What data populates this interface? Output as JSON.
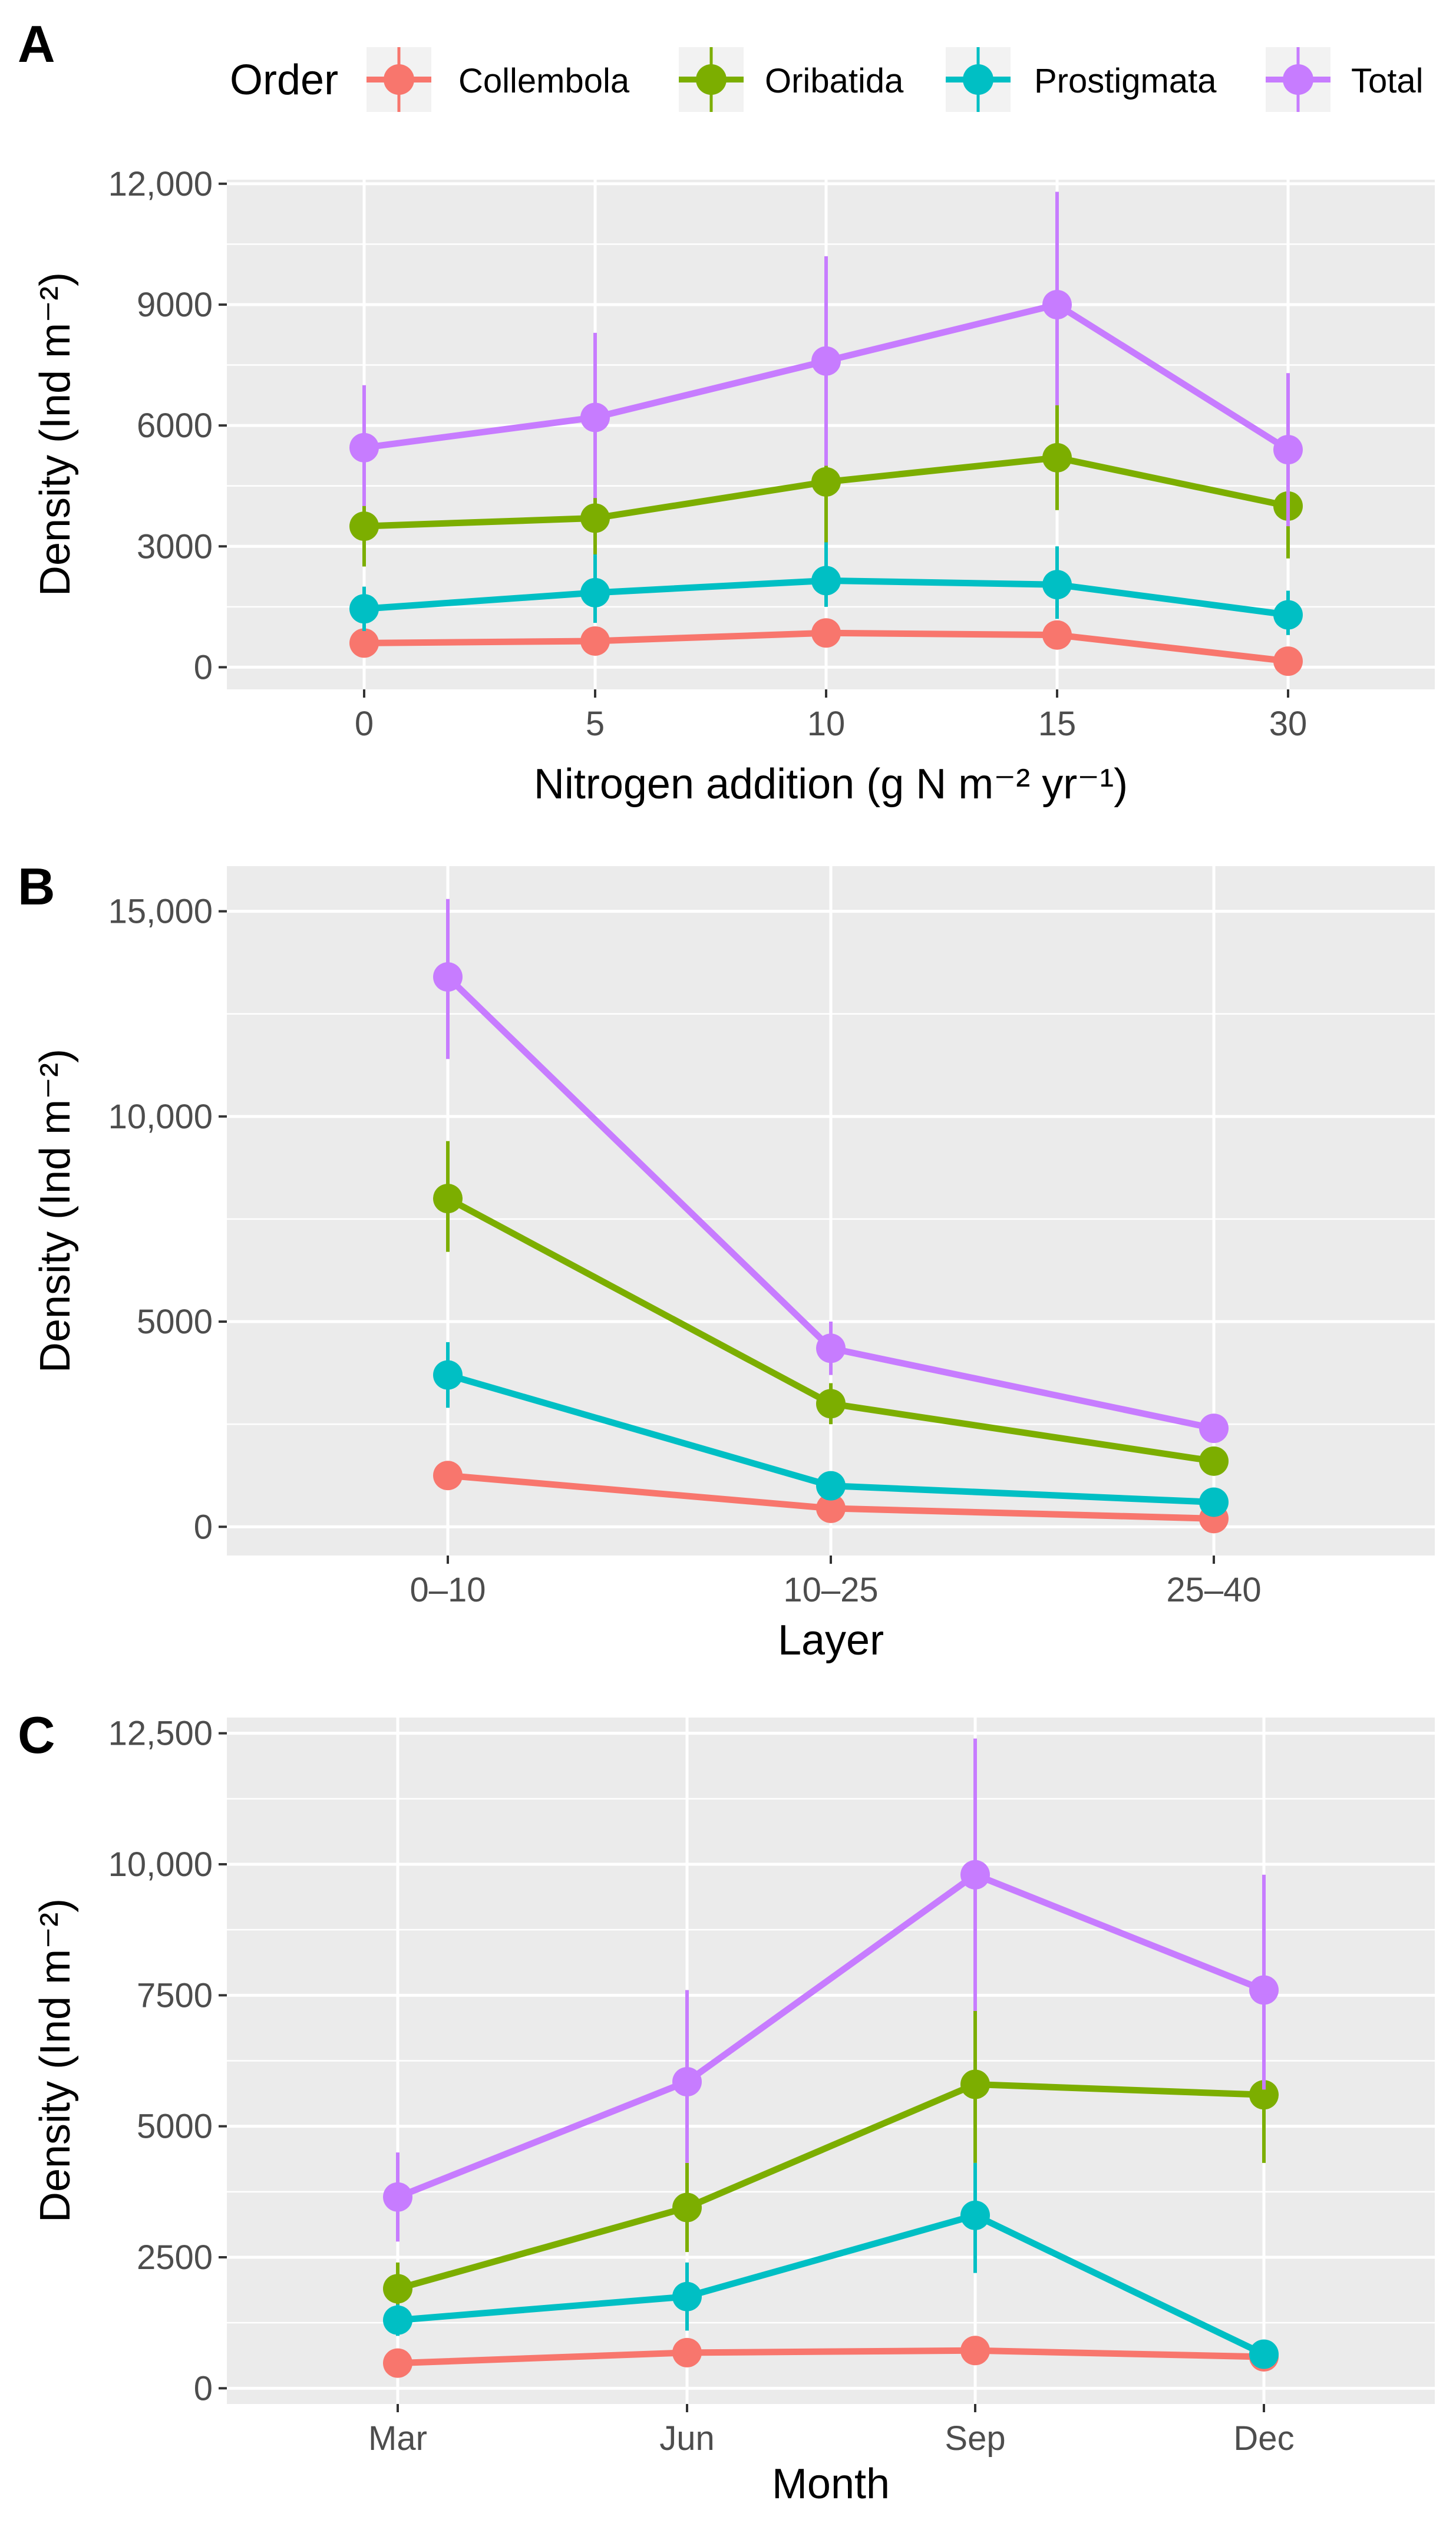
{
  "legend": {
    "title": "Order",
    "entries": [
      {
        "name": "Collembola",
        "color": "#F8766D"
      },
      {
        "name": "Oribatida",
        "color": "#7CAE00"
      },
      {
        "name": "Prostigmata",
        "color": "#00BFC4"
      },
      {
        "name": "Total",
        "color": "#C77CFF"
      }
    ]
  },
  "chart_data": [
    {
      "panel": "A",
      "type": "line",
      "xlabel": "Nitrogen addition (g N  m⁻² yr⁻¹)",
      "ylabel": "Density (Ind  m⁻²)",
      "categories": [
        "0",
        "5",
        "10",
        "15",
        "30"
      ],
      "ylim": [
        -550,
        12100
      ],
      "yticks": [
        0,
        3000,
        6000,
        9000,
        12000
      ],
      "ytick_labels": [
        "0",
        "3000",
        "6000",
        "9000",
        "12,000"
      ],
      "series": [
        {
          "name": "Collembola",
          "values": [
            600,
            650,
            850,
            800,
            150
          ],
          "lower": [
            400,
            450,
            650,
            600,
            0
          ],
          "upper": [
            800,
            850,
            1050,
            1000,
            300
          ]
        },
        {
          "name": "Oribatida",
          "values": [
            3500,
            3700,
            4600,
            5200,
            4000
          ],
          "lower": [
            2500,
            2700,
            3000,
            3900,
            2700
          ],
          "upper": [
            4700,
            5000,
            6200,
            6600,
            5000
          ]
        },
        {
          "name": "Prostigmata",
          "values": [
            1450,
            1850,
            2150,
            2050,
            1300
          ],
          "lower": [
            900,
            1100,
            1500,
            1200,
            800
          ],
          "upper": [
            2000,
            2800,
            3100,
            3000,
            1900
          ]
        },
        {
          "name": "Total",
          "values": [
            5450,
            6200,
            7600,
            9000,
            5400
          ],
          "lower": [
            4000,
            4200,
            5000,
            6500,
            3500
          ],
          "upper": [
            7000,
            8300,
            10200,
            11800,
            7300
          ]
        }
      ]
    },
    {
      "panel": "B",
      "type": "line",
      "xlabel": "Layer",
      "ylabel": "Density (Ind  m⁻²)",
      "categories": [
        "0–10",
        "10–25",
        "25–40"
      ],
      "ylim": [
        -700,
        16100
      ],
      "yticks": [
        0,
        5000,
        10000,
        15000
      ],
      "ytick_labels": [
        "0",
        "5000",
        "10,000",
        "15,000"
      ],
      "series": [
        {
          "name": "Collembola",
          "values": [
            1250,
            450,
            200
          ],
          "lower": [
            1000,
            300,
            100
          ],
          "upper": [
            1500,
            600,
            300
          ]
        },
        {
          "name": "Oribatida",
          "values": [
            8000,
            3000,
            1600
          ],
          "lower": [
            6700,
            2500,
            1300
          ],
          "upper": [
            9400,
            3500,
            1900
          ]
        },
        {
          "name": "Prostigmata",
          "values": [
            3700,
            1000,
            600
          ],
          "lower": [
            2900,
            800,
            400
          ],
          "upper": [
            4500,
            1200,
            800
          ]
        },
        {
          "name": "Total",
          "values": [
            13400,
            4350,
            2400
          ],
          "lower": [
            11400,
            3700,
            2100
          ],
          "upper": [
            15300,
            5000,
            2700
          ]
        }
      ]
    },
    {
      "panel": "C",
      "type": "line",
      "xlabel": "Month",
      "ylabel": "Density (Ind  m⁻²)",
      "categories": [
        "Mar",
        "Jun",
        "Sep",
        "Dec"
      ],
      "ylim": [
        -300,
        12800
      ],
      "yticks": [
        0,
        2500,
        5000,
        7500,
        10000,
        12500
      ],
      "ytick_labels": [
        "0",
        "2500",
        "5000",
        "7500",
        "10,000",
        "12,500"
      ],
      "series": [
        {
          "name": "Collembola",
          "values": [
            480,
            680,
            720,
            600
          ],
          "lower": [
            300,
            450,
            500,
            450
          ],
          "upper": [
            650,
            900,
            950,
            750
          ]
        },
        {
          "name": "Oribatida",
          "values": [
            1900,
            3450,
            5800,
            5600
          ],
          "lower": [
            1500,
            2600,
            4300,
            4300
          ],
          "upper": [
            2400,
            4300,
            7300,
            6900
          ]
        },
        {
          "name": "Prostigmata",
          "values": [
            1300,
            1750,
            3300,
            650
          ],
          "lower": [
            1000,
            1100,
            2200,
            500
          ],
          "upper": [
            1600,
            2400,
            4300,
            800
          ]
        },
        {
          "name": "Total",
          "values": [
            3650,
            5850,
            9800,
            7600
          ],
          "lower": [
            2800,
            4300,
            7200,
            5700
          ],
          "upper": [
            4500,
            7600,
            12400,
            9800
          ]
        }
      ]
    }
  ]
}
